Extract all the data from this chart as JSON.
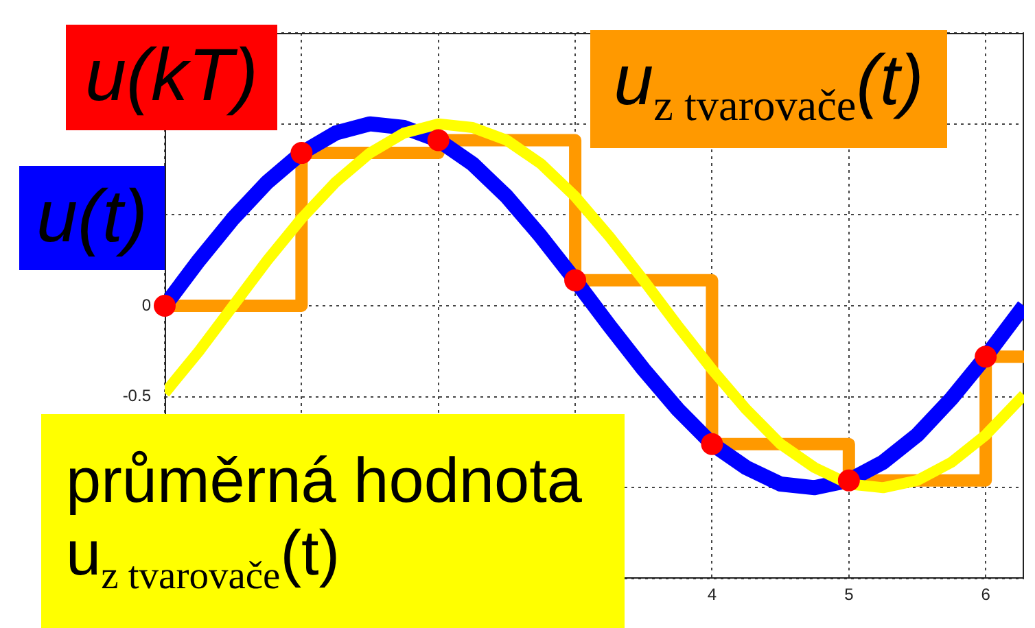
{
  "chart_data": {
    "type": "line",
    "xlim": [
      0,
      6.28
    ],
    "xticks": [
      {
        "value": 0,
        "label": null
      },
      {
        "value": 1,
        "label": null
      },
      {
        "value": 2,
        "label": null
      },
      {
        "value": 3,
        "label": null
      },
      4,
      5,
      6
    ],
    "ylim": [
      -1.5,
      1.5
    ],
    "yticks": [
      {
        "value": -1.5,
        "label": null
      },
      {
        "value": -1,
        "label": null
      },
      -0.5,
      0,
      {
        "value": 0.5,
        "label": null
      },
      {
        "value": 1,
        "label": null
      },
      {
        "value": 1.5,
        "label": null
      }
    ],
    "grid": true,
    "legend": "top left",
    "series": [
      {
        "name": "u$_{z tvarovače}$(t)",
        "type": "step",
        "color": "#ff9900",
        "x": [
          0,
          1,
          2,
          3,
          4,
          5,
          6,
          6.28
        ],
        "values": [
          0,
          0.84,
          0.91,
          0.14,
          -0.76,
          -0.96,
          -0.28,
          -0.28
        ]
      },
      {
        "name": "u(t)",
        "type": "line",
        "color": "#0000ff",
        "x": [
          0,
          0.25,
          0.5,
          0.75,
          1,
          1.25,
          1.5,
          1.75,
          2,
          2.25,
          2.5,
          2.75,
          3,
          3.25,
          3.5,
          3.75,
          4,
          4.25,
          4.5,
          4.75,
          5,
          5.25,
          5.5,
          5.75,
          6,
          6.28
        ],
        "values": [
          0,
          0.25,
          0.48,
          0.68,
          0.84,
          0.95,
          1.0,
          0.98,
          0.91,
          0.78,
          0.6,
          0.38,
          0.14,
          -0.11,
          -0.35,
          -0.57,
          -0.76,
          -0.89,
          -0.98,
          -1.0,
          -0.96,
          -0.86,
          -0.71,
          -0.51,
          -0.28,
          0
        ]
      },
      {
        "name": "průměrná hodnota u$_{z tvarovače}$(t)",
        "type": "line",
        "color": "#ffff00",
        "x": [
          0,
          0.25,
          0.5,
          0.75,
          1,
          1.25,
          1.5,
          1.75,
          2,
          2.25,
          2.5,
          2.75,
          3,
          3.25,
          3.5,
          3.75,
          4,
          4.25,
          4.5,
          4.75,
          5,
          5.25,
          5.5,
          5.75,
          6,
          6.28
        ],
        "values": [
          -0.48,
          -0.25,
          0,
          0.25,
          0.48,
          0.68,
          0.84,
          0.95,
          1.0,
          0.98,
          0.91,
          0.78,
          0.6,
          0.38,
          0.14,
          -0.11,
          -0.35,
          -0.57,
          -0.76,
          -0.89,
          -0.98,
          -1.0,
          -0.96,
          -0.86,
          -0.71,
          -0.49
        ]
      },
      {
        "name": "u(kT)",
        "type": "scatter",
        "color": "#ff0000",
        "marker": "circle",
        "x": [
          0,
          1,
          2,
          3,
          4,
          5,
          6
        ],
        "values": [
          0,
          0.84,
          0.91,
          0.14,
          -0.76,
          -0.96,
          -0.28
        ]
      }
    ]
  }
}
